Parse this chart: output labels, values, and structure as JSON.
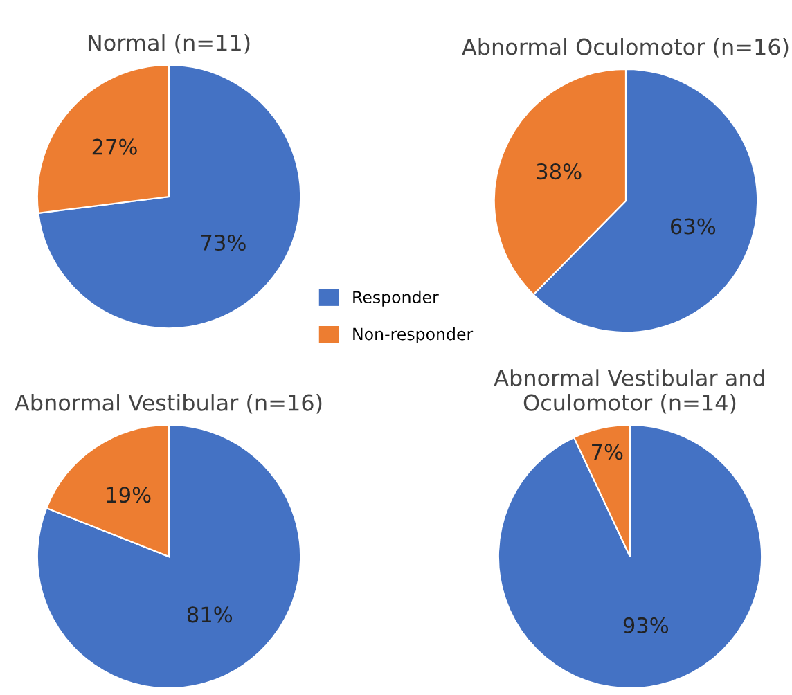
{
  "chart_data": [
    {
      "type": "pie",
      "title": "Normal (n=11)",
      "categories": [
        "Responder",
        "Non-responder"
      ],
      "values": [
        73,
        27
      ],
      "colors": [
        "#4472c4",
        "#ed7d31"
      ],
      "value_labels": [
        "73%",
        "27%"
      ],
      "legend": "bottom right"
    },
    {
      "type": "pie",
      "title": "Abnormal Oculomotor (n=16)",
      "values": [
        63,
        38
      ],
      "colors": [
        "#4472c4",
        "#ed7d31"
      ],
      "value_labels": [
        "63%",
        "38%"
      ]
    },
    {
      "type": "pie",
      "title": "Abnormal Vestibular (n=16)",
      "values": [
        81,
        19
      ],
      "colors": [
        "#4472c4",
        "#ed7d31"
      ],
      "value_labels": [
        "81%",
        "19%"
      ]
    },
    {
      "type": "pie",
      "title": "Abnormal Vestibular and\nOculomotor (n=14)",
      "values": [
        93,
        7
      ],
      "colors": [
        "#4472c4",
        "#ed7d31"
      ],
      "value_labels": [
        "93%",
        "7%"
      ]
    }
  ]
}
